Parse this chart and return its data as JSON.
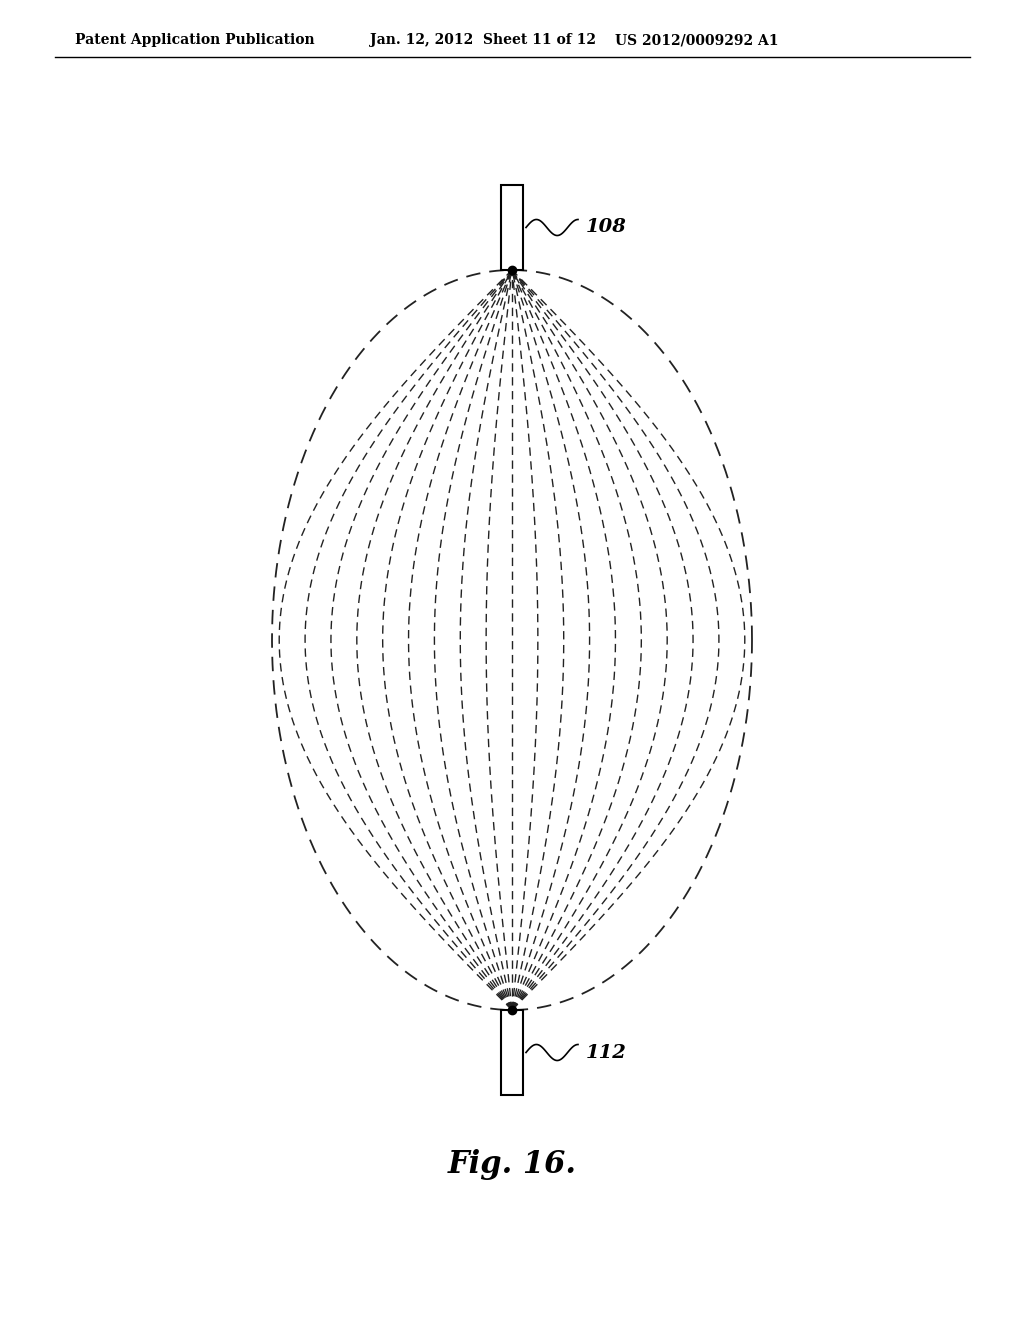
{
  "background_color": "#ffffff",
  "header_left": "Patent Application Publication",
  "header_center": "Jan. 12, 2012  Sheet 11 of 12",
  "header_right": "US 2012/0009292 A1",
  "figure_label": "Fig. 16.",
  "label_108": "108",
  "label_112": "112",
  "line_color": "#222222",
  "ellipse_color": "#222222",
  "n_lines": 19
}
